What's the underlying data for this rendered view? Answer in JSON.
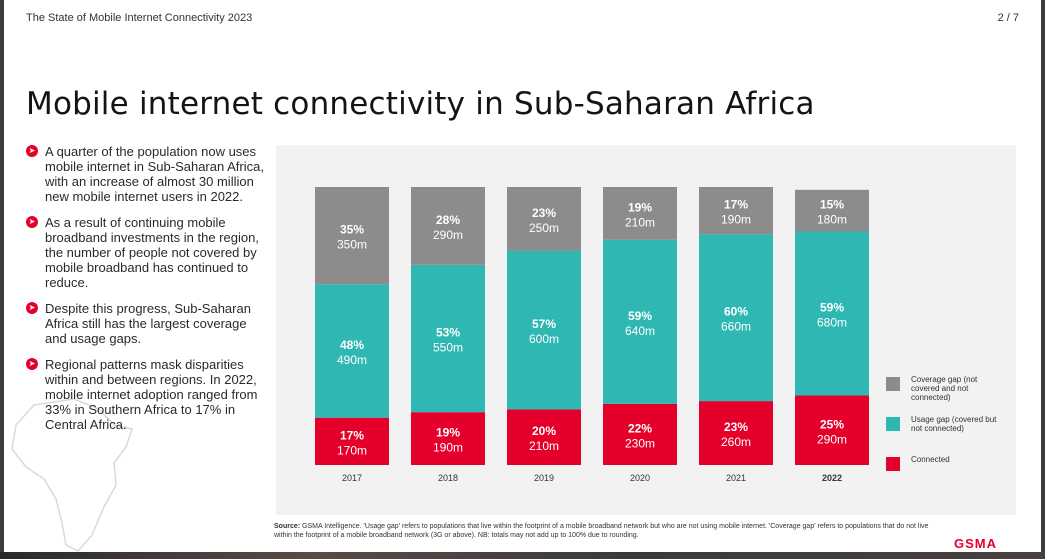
{
  "document": {
    "title": "The State of Mobile Internet Connectivity 2023",
    "page_indicator": "2 / 7"
  },
  "slide": {
    "title": "Mobile internet connectivity in Sub-Saharan Africa"
  },
  "bullets": [
    "A quarter of the population now uses mobile internet in Sub-Saharan Africa, with an increase of almost 30 million new mobile internet users in 2022.",
    "As a result of continuing mobile broadband investments in the region, the number of people not covered by mobile broadband has continued to reduce.",
    "Despite this progress, Sub-Saharan Africa still has the largest coverage and usage gaps.",
    "Regional patterns mask disparities within and between regions. In 2022, mobile internet adoption ranged from 33% in Southern Africa to 17% in Central Africa."
  ],
  "colors": {
    "coverage_gap": "#8c8c8c",
    "usage_gap": "#2fb7b3",
    "connected": "#e4002b",
    "accent": "#e4002b",
    "panel": "#f2f2f2"
  },
  "icons": {
    "bullet": "arrow-right-circle-icon",
    "map": "africa-map-icon"
  },
  "chart_data": {
    "type": "bar",
    "stacked": true,
    "categories": [
      "2017",
      "2018",
      "2019",
      "2020",
      "2021",
      "2022"
    ],
    "highlight_category": "2022",
    "series": [
      {
        "name": "Connected",
        "color": "#e4002b",
        "values": [
          17,
          19,
          20,
          22,
          23,
          25
        ],
        "labels_pct": [
          "17%",
          "19%",
          "20%",
          "22%",
          "23%",
          "25%"
        ],
        "labels_abs": [
          "170m",
          "190m",
          "210m",
          "230m",
          "260m",
          "290m"
        ]
      },
      {
        "name": "Usage gap (covered but not connected)",
        "color": "#2fb7b3",
        "values": [
          48,
          53,
          57,
          59,
          60,
          59
        ],
        "labels_pct": [
          "48%",
          "53%",
          "57%",
          "59%",
          "60%",
          "59%"
        ],
        "labels_abs": [
          "490m",
          "550m",
          "600m",
          "640m",
          "660m",
          "680m"
        ]
      },
      {
        "name": "Coverage gap (not covered and not connected)",
        "color": "#8c8c8c",
        "values": [
          35,
          28,
          23,
          19,
          17,
          15
        ],
        "labels_pct": [
          "35%",
          "28%",
          "23%",
          "19%",
          "17%",
          "15%"
        ],
        "labels_abs": [
          "350m",
          "290m",
          "250m",
          "210m",
          "190m",
          "180m"
        ]
      }
    ],
    "legend": {
      "position": "right",
      "items": [
        "Coverage gap (not covered and not connected)",
        "Usage gap (covered but not connected)",
        "Connected"
      ]
    },
    "grid": false
  },
  "legend_labels": {
    "coverage": "Coverage gap (not covered and not connected)",
    "usage": "Usage gap (covered but not connected)",
    "connected": "Connected"
  },
  "source": {
    "label": "Source:",
    "text": "GSMA Intelligence. 'Usage gap' refers to populations that live within the footprint of a mobile broadband network but who are not using mobile internet. 'Coverage gap' refers to populations that do not live within the footprint of a mobile broadband network (3G or above). NB: totals may not add up to 100% due to rounding."
  },
  "brand": {
    "logo_text": "GSMA"
  }
}
